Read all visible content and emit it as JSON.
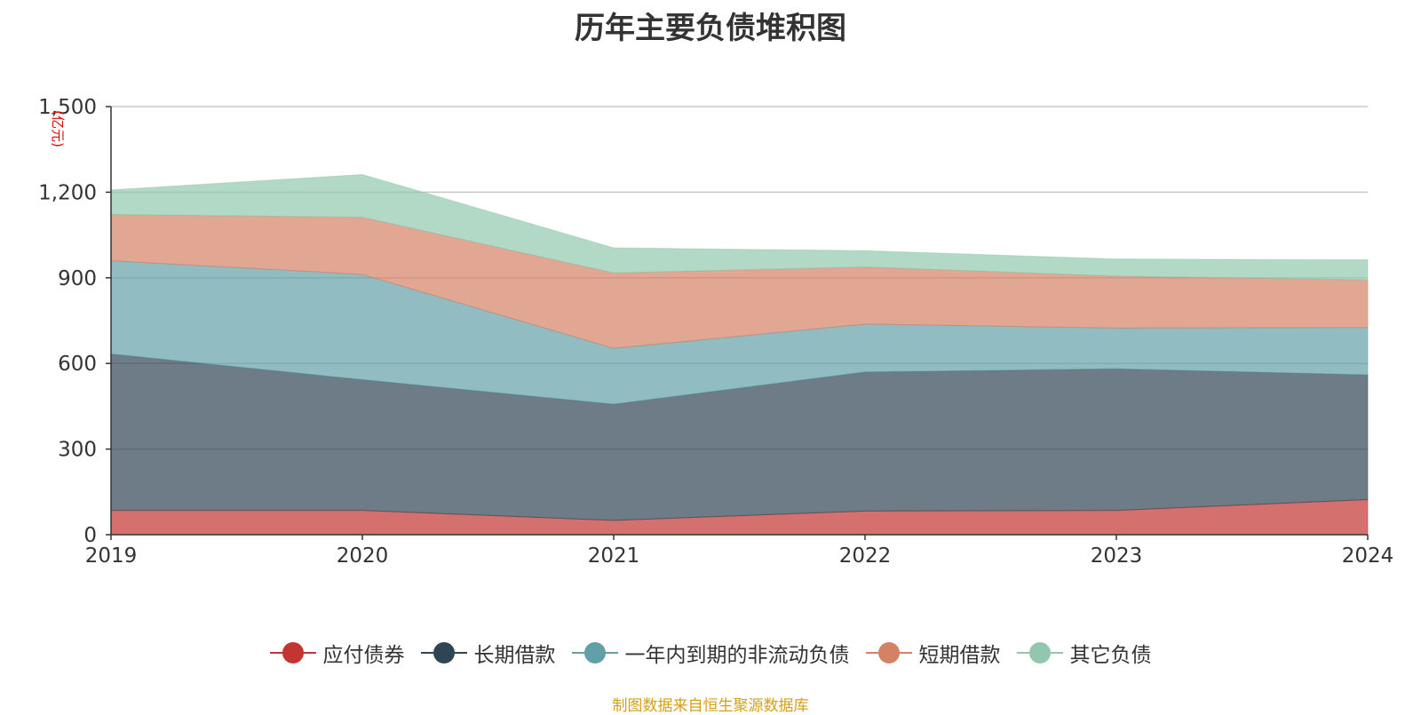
{
  "title": "历年主要负债堆积图",
  "unit": "(亿元)",
  "source": "制图数据来自恒生聚源数据库",
  "chart_data": {
    "type": "area",
    "stacked": true,
    "title": "历年主要负债堆积图",
    "ylabel": "(亿元)",
    "x": [
      "2019",
      "2020",
      "2021",
      "2022",
      "2023",
      "2024"
    ],
    "ylim": [
      0,
      1500
    ],
    "yticks": [
      0,
      300,
      600,
      900,
      1200,
      1500
    ],
    "ytick_labels": [
      "0",
      "300",
      "600",
      "900",
      "1,200",
      "1,500"
    ],
    "grid": true,
    "legend_position": "bottom",
    "series": [
      {
        "name": "应付债券",
        "color": "#c23531",
        "values": [
          85,
          85,
          50,
          83,
          85,
          123
        ]
      },
      {
        "name": "长期借款",
        "color": "#2f4554",
        "values": [
          548,
          458,
          407,
          487,
          496,
          437
        ]
      },
      {
        "name": "一年内到期的非流动负债",
        "color": "#61a0a8",
        "values": [
          327,
          369,
          196,
          168,
          143,
          166
        ]
      },
      {
        "name": "短期借款",
        "color": "#d48265",
        "values": [
          162,
          200,
          264,
          200,
          182,
          167
        ]
      },
      {
        "name": "其它负债",
        "color": "#91c7ae",
        "values": [
          86,
          150,
          88,
          57,
          60,
          70
        ]
      }
    ]
  }
}
